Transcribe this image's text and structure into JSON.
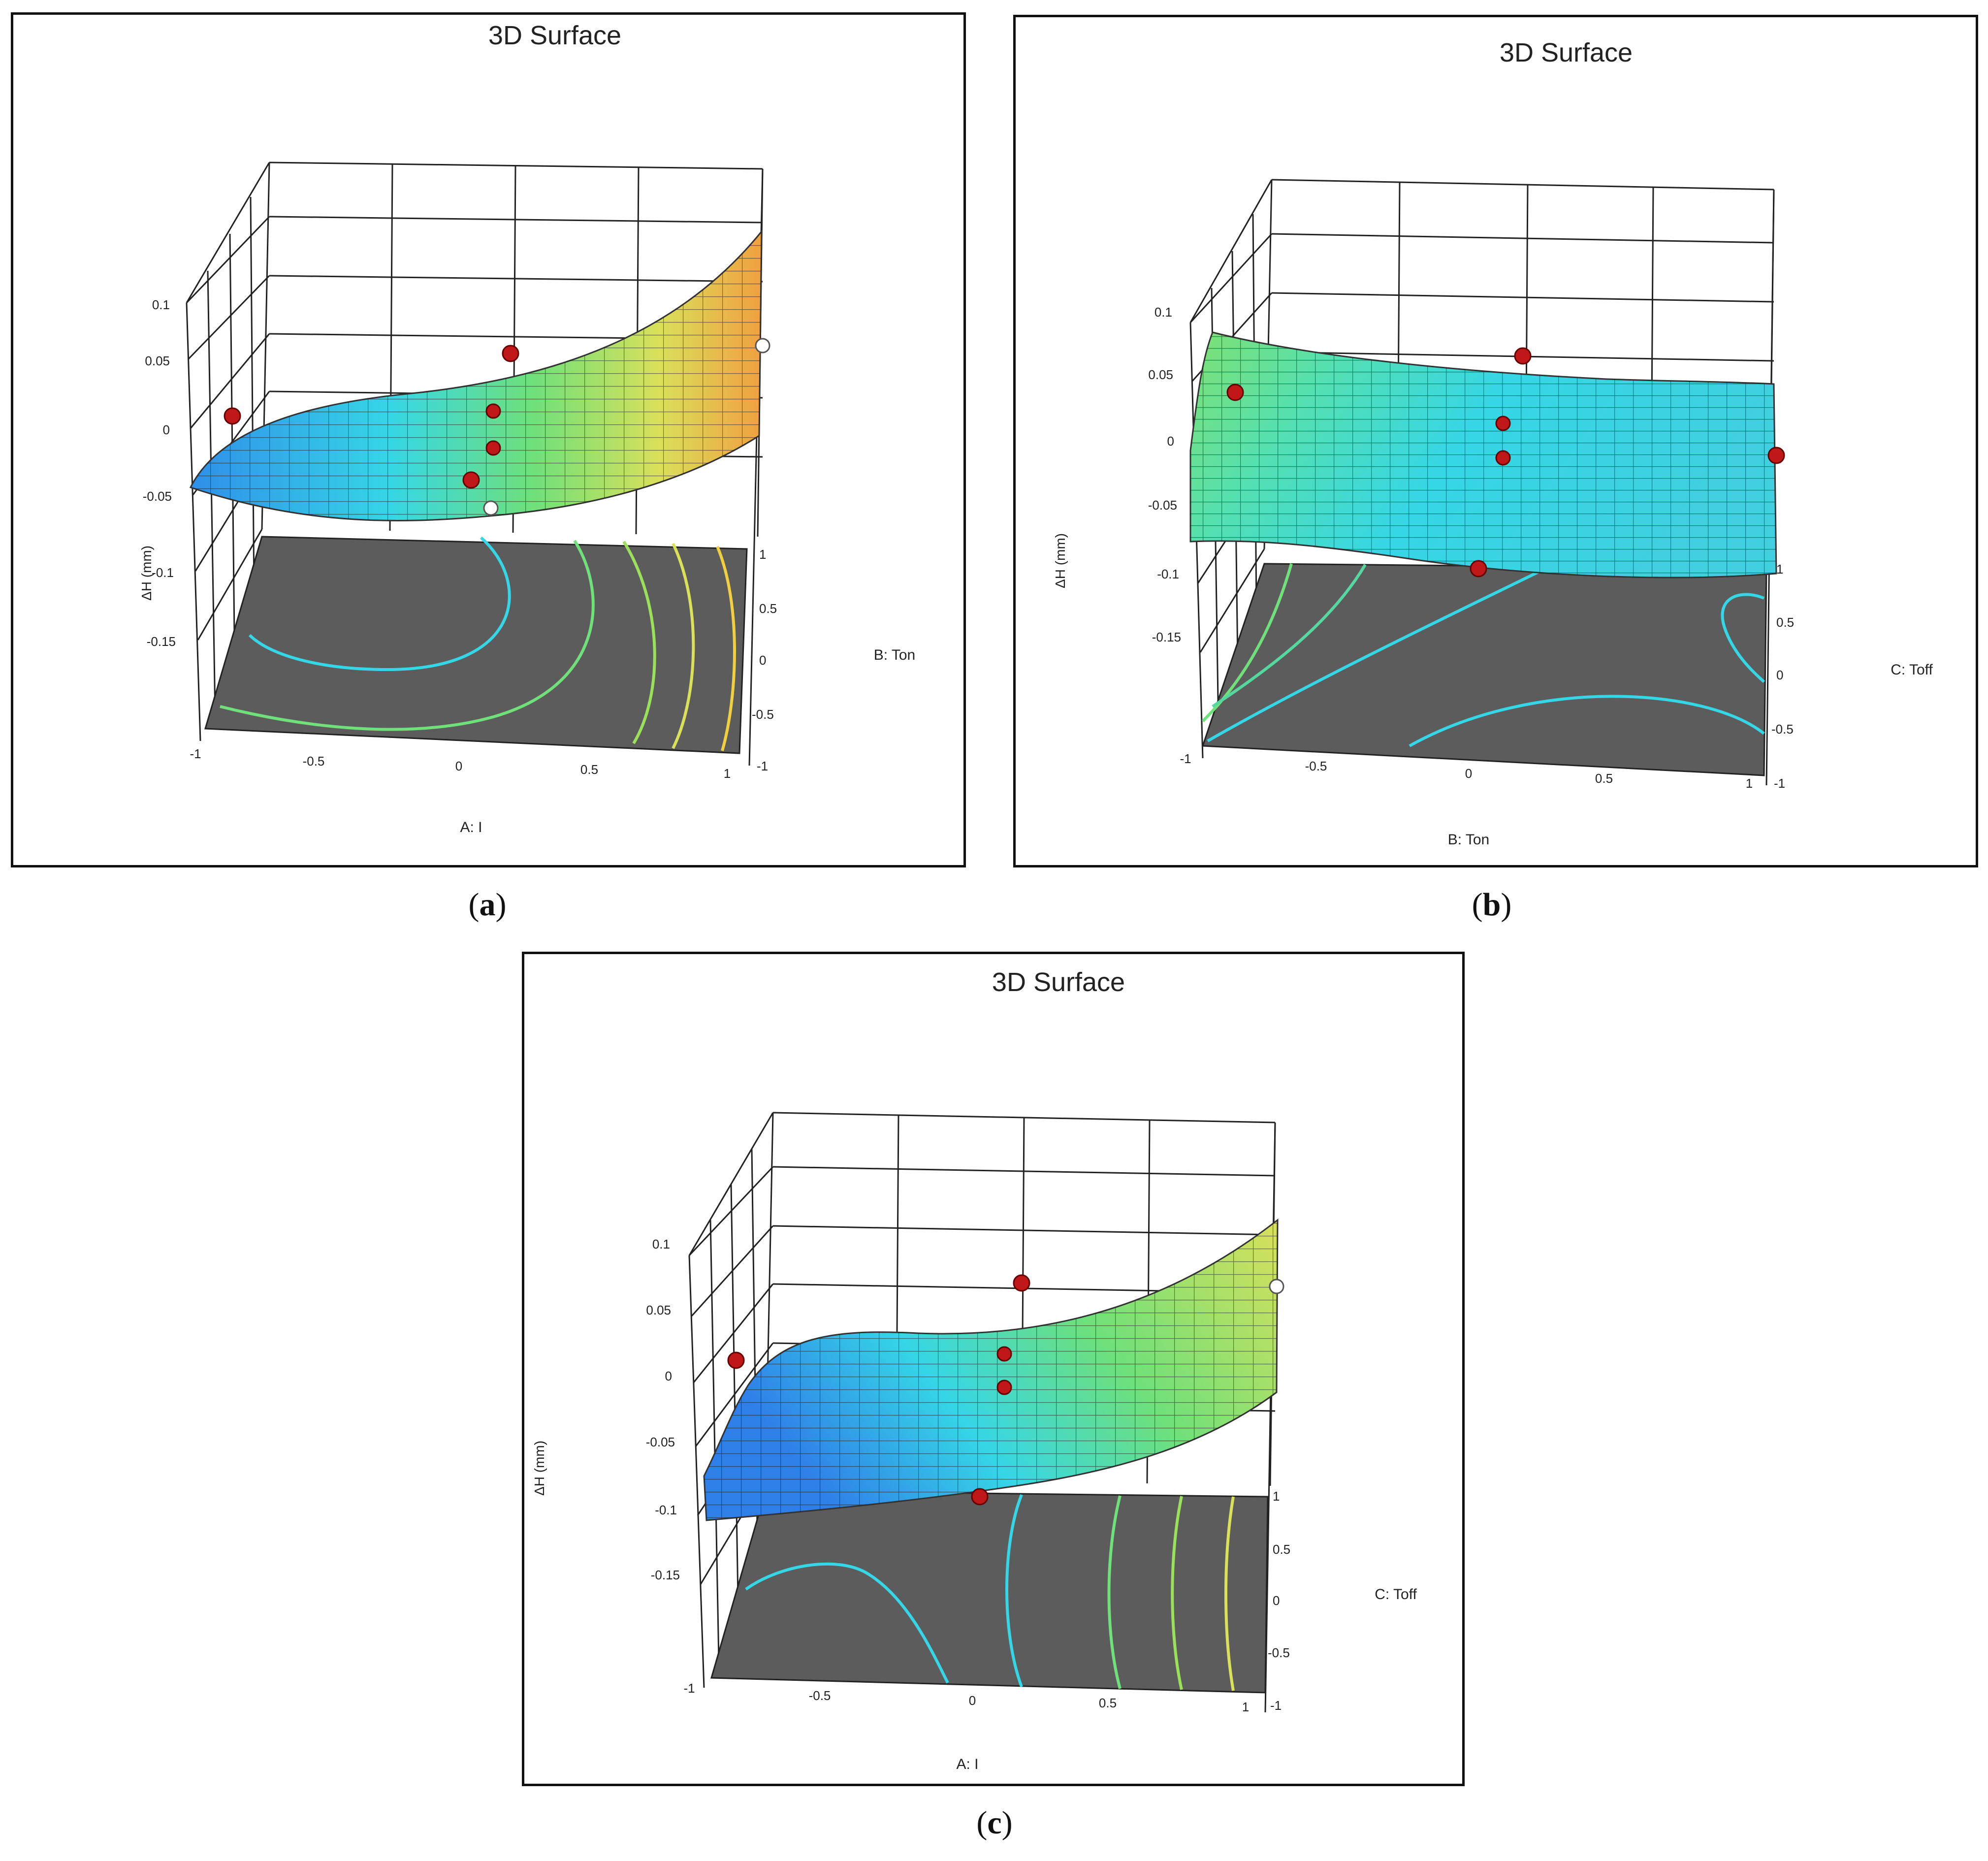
{
  "figure": {
    "captions": [
      {
        "open": "(",
        "letter": "a",
        "close": ")"
      },
      {
        "open": "(",
        "letter": "b",
        "close": ")"
      },
      {
        "open": "(",
        "letter": "c",
        "close": ")"
      }
    ]
  },
  "chart_data": [
    {
      "type": "surface",
      "title": "3D Surface",
      "xlabel": "A: I",
      "ylabel": "B: Ton",
      "zlabel": "ΔH (mm)",
      "xlim": [
        -1,
        1
      ],
      "ylim": [
        -1,
        1
      ],
      "zlim": [
        -0.15,
        0.1
      ],
      "x_ticks": [
        "-1",
        "-0.5",
        "0",
        "0.5",
        "1"
      ],
      "y_ticks": [
        "1",
        "0.5",
        "0",
        "-0.5",
        "-1"
      ],
      "z_ticks": [
        "0.1",
        "0.05",
        "0",
        "-0.05",
        "-0.1",
        "-0.15"
      ],
      "colormap": [
        "#2f7fe8",
        "#35d6e6",
        "#6fe07a",
        "#d9e05a",
        "#f0a040"
      ],
      "points": [
        {
          "x": -1,
          "y": 0,
          "z": 0.005
        },
        {
          "x": 0,
          "y": 1,
          "z": 0.06
        },
        {
          "x": 0,
          "y": 0,
          "z": 0.015
        },
        {
          "x": 0,
          "y": 0,
          "z": -0.012
        },
        {
          "x": 0,
          "y": -1,
          "z": -0.04
        }
      ]
    },
    {
      "type": "surface",
      "title": "3D Surface",
      "xlabel": "B: Ton",
      "ylabel": "C: Toff",
      "zlabel": "ΔH (mm)",
      "xlim": [
        -1,
        1
      ],
      "ylim": [
        -1,
        1
      ],
      "zlim": [
        -0.15,
        0.1
      ],
      "x_ticks": [
        "-1",
        "-0.5",
        "0",
        "0.5",
        "1"
      ],
      "y_ticks": [
        "1",
        "0.5",
        "0",
        "-0.5",
        "-1"
      ],
      "z_ticks": [
        "0.1",
        "0.05",
        "0",
        "-0.05",
        "-0.1",
        "-0.15"
      ],
      "colormap": [
        "#2fb3e8",
        "#35d6e6",
        "#6fe07a",
        "#9be05a"
      ],
      "points": [
        {
          "x": -1,
          "y": 0,
          "z": 0.04
        },
        {
          "x": 0,
          "y": 1,
          "z": 0.07
        },
        {
          "x": 0,
          "y": 0,
          "z": 0.015
        },
        {
          "x": 0,
          "y": 0,
          "z": -0.005
        },
        {
          "x": 1,
          "y": 0,
          "z": -0.01
        },
        {
          "x": 0,
          "y": -1,
          "z": -0.1
        }
      ]
    },
    {
      "type": "surface",
      "title": "3D Surface",
      "xlabel": "A: I",
      "ylabel": "C: Toff",
      "zlabel": "ΔH (mm)",
      "xlim": [
        -1,
        1
      ],
      "ylim": [
        -1,
        1
      ],
      "zlim": [
        -0.15,
        0.1
      ],
      "x_ticks": [
        "-1",
        "-0.5",
        "0",
        "0.5",
        "1"
      ],
      "y_ticks": [
        "1",
        "0.5",
        "0",
        "-0.5",
        "-1"
      ],
      "z_ticks": [
        "0.1",
        "0.05",
        "0",
        "-0.05",
        "-0.1",
        "-0.15"
      ],
      "colormap": [
        "#2f7fe8",
        "#35d6e6",
        "#6fe07a",
        "#d9e05a"
      ],
      "points": [
        {
          "x": -1,
          "y": 0,
          "z": 0.0
        },
        {
          "x": 0,
          "y": 1,
          "z": 0.06
        },
        {
          "x": 0,
          "y": 0,
          "z": 0.015
        },
        {
          "x": 0,
          "y": 0,
          "z": -0.01
        },
        {
          "x": 0,
          "y": -1,
          "z": -0.095
        }
      ]
    }
  ]
}
